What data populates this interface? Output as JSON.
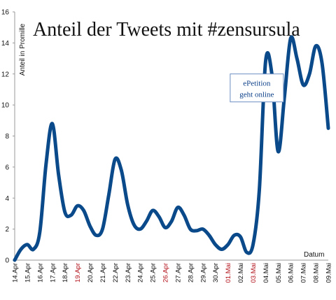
{
  "chart_data": {
    "type": "line",
    "title": "Anteil der Tweets mit #zensursula",
    "ylabel": "Anteil in Promille",
    "xlabel": "Datum",
    "ylim": [
      0,
      16
    ],
    "yticks": [
      0,
      2,
      4,
      6,
      8,
      10,
      12,
      14,
      16
    ],
    "grid": false,
    "legend": "none",
    "line_color": "#0b4a8a",
    "highlight_color": "#b3121b",
    "categories": [
      "14.Apr",
      "15.Apr",
      "16.Apr",
      "17.Apr",
      "18.Apr",
      "19.Apr",
      "20.Apr",
      "21.Apr",
      "22.Apr",
      "23.Apr",
      "24.Apr",
      "25.Apr",
      "26.Apr",
      "27.Apr",
      "28.Apr",
      "29.Apr",
      "30.Apr",
      "01.Mai",
      "02.Mai",
      "03.Mai",
      "04.Mai",
      "05.Mai",
      "06.Mai",
      "07.Mai",
      "08.Mai",
      "09.Mai"
    ],
    "highlighted_categories": [
      "19.Apr",
      "26.Apr",
      "01.Mai",
      "03.Mai"
    ],
    "x": [
      0,
      0.5,
      1,
      1.5,
      2,
      2.5,
      3,
      3.5,
      4,
      4.5,
      5,
      5.5,
      6,
      6.5,
      7,
      7.5,
      8,
      8.5,
      9,
      9.5,
      10,
      10.5,
      11,
      11.5,
      12,
      12.5,
      13,
      13.5,
      14,
      14.5,
      15,
      15.5,
      16,
      16.5,
      17,
      17.5,
      18,
      18.5,
      19,
      19.5,
      20,
      20.5,
      21,
      21.5,
      22,
      22.5,
      23,
      23.5,
      24,
      24.5,
      25
    ],
    "y": [
      0,
      0.7,
      1,
      0.7,
      1.8,
      6.2,
      8.8,
      5.5,
      3.1,
      2.9,
      3.5,
      3.2,
      2.2,
      1.6,
      2.0,
      4.2,
      6.5,
      5.8,
      3.6,
      2.3,
      2.0,
      2.5,
      3.2,
      2.8,
      2.1,
      2.5,
      3.4,
      2.9,
      2.0,
      1.9,
      2.0,
      1.6,
      1.0,
      0.7,
      1.0,
      1.6,
      1.5,
      0.5,
      1.0,
      4.5,
      12.8,
      12.0,
      7.0,
      10.5,
      14.3,
      13.0,
      11.3,
      12.0,
      13.8,
      12.7,
      8.5
    ],
    "annotations": [
      {
        "text_line1": "ePetition",
        "text_line2": "geht online",
        "x": 19.3,
        "y": 11.1
      }
    ]
  }
}
